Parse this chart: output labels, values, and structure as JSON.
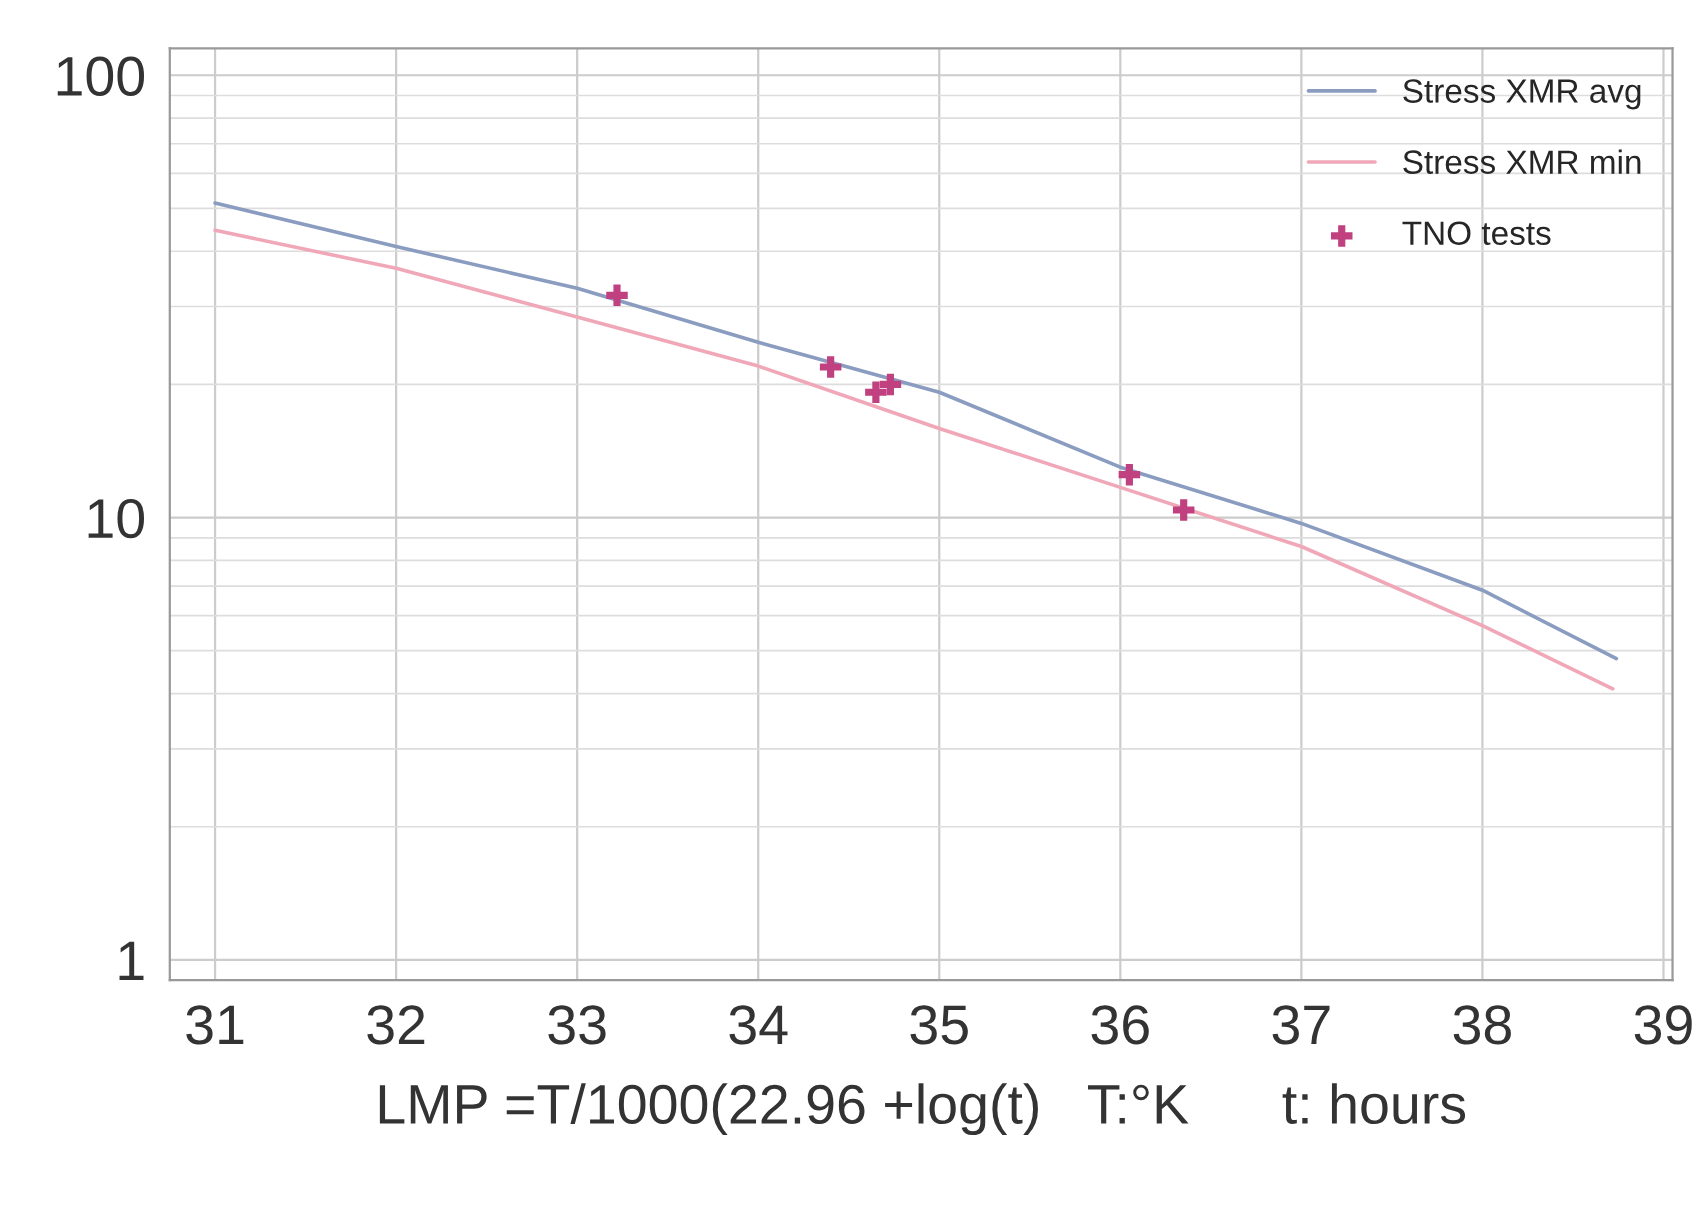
{
  "chart_data": {
    "type": "line",
    "xlabel": "LMP =T/1000(22.96 +log(t)   T:°K      t: hours",
    "log": "y",
    "grid": true,
    "legend": "top right",
    "xlim": [
      30.75,
      39.05
    ],
    "ylim": [
      0.9,
      115
    ],
    "xticks": [
      31,
      32,
      33,
      34,
      35,
      36,
      37,
      38,
      39
    ],
    "yticks": [
      1,
      10,
      100
    ],
    "series": [
      {
        "name": "Stress XMR avg",
        "color": "#8a9cc0",
        "x": [
          31,
          32,
          33,
          34,
          35,
          36,
          37,
          38,
          38.74
        ],
        "values": [
          51.4,
          41,
          33,
          24.9,
          19.2,
          13,
          9.7,
          6.85,
          4.8
        ]
      },
      {
        "name": "Stress XMR min",
        "color": "#f0a8b8",
        "x": [
          31,
          32,
          33,
          34,
          35,
          36,
          37,
          38,
          38.72
        ],
        "values": [
          44.6,
          36.6,
          28.4,
          22,
          15.9,
          11.7,
          8.6,
          5.7,
          4.1
        ]
      },
      {
        "name": "TNO tests",
        "type": "scatter",
        "marker": "cross",
        "color": "#c04080",
        "x": [
          33.22,
          34.4,
          34.65,
          34.73,
          36.05,
          36.35
        ],
        "values": [
          31.8,
          21.9,
          19.2,
          20,
          12.5,
          10.4
        ]
      }
    ]
  }
}
